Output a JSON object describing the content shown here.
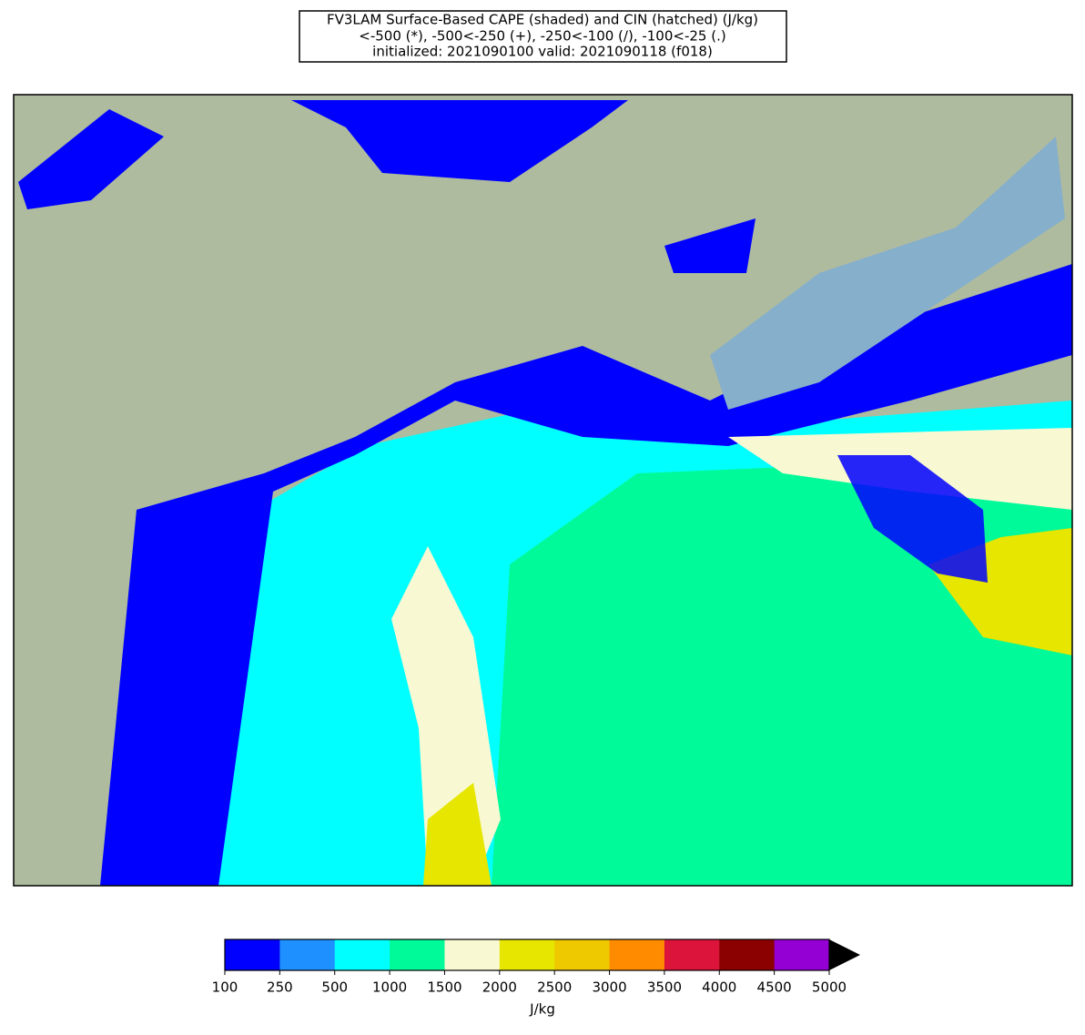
{
  "title": {
    "lines": [
      "FV3LAM Surface-Based CAPE (shaded) and CIN (hatched) (J/kg)",
      "<-500 (*), -500<-250 (+), -250<-100 (/), -100<-25 (.)",
      "initialized: 2021090100 valid: 2021090118 (f018)"
    ]
  },
  "colorbar": {
    "label": "J/kg",
    "extend": "max",
    "extend_color": "#000000",
    "ticks": [
      100,
      250,
      500,
      1000,
      1500,
      2000,
      2500,
      3000,
      3500,
      4000,
      4500,
      5000
    ],
    "colors": [
      "#0000ff",
      "#1e90ff",
      "#00ffff",
      "#00fa9a",
      "#f8f8d2",
      "#e6e600",
      "#eec900",
      "#ff8c00",
      "#dc143c",
      "#8b0000",
      "#9400d3"
    ]
  }
}
